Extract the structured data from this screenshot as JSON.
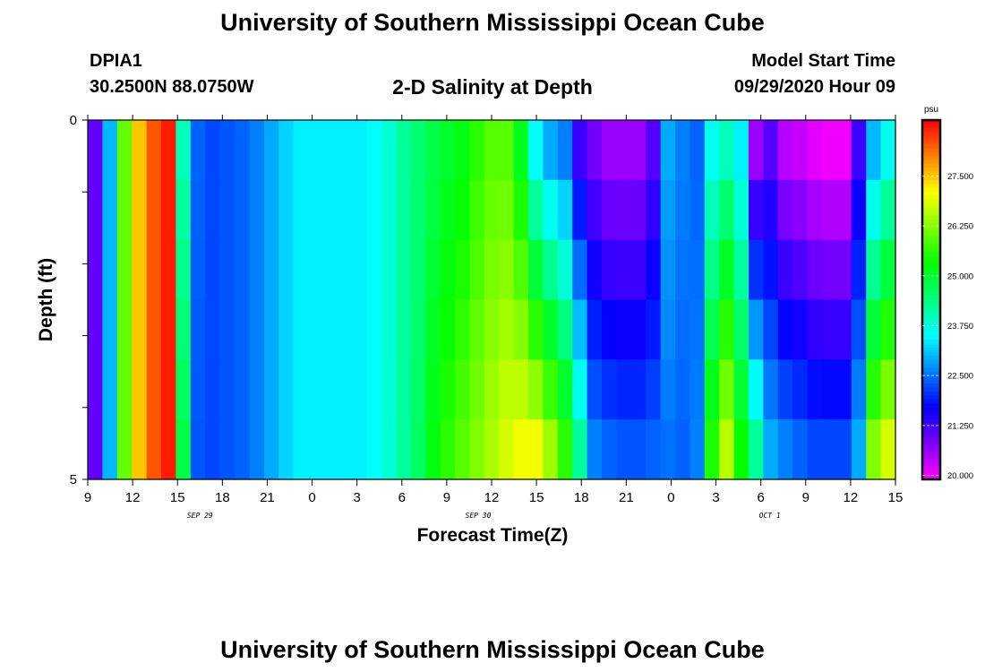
{
  "header": {
    "title": "University of Southern Mississippi Ocean Cube",
    "station_id": "DPIA1",
    "location": "30.2500N 88.0750W",
    "plot_title": "2-D Salinity at Depth",
    "model_start_label": "Model Start Time",
    "model_start_value": "09/29/2020 Hour 09"
  },
  "footer": {
    "title": "University of Southern Mississippi Ocean Cube"
  },
  "chart_data": {
    "type": "heatmap",
    "title": "2-D Salinity at Depth",
    "xlabel": "Forecast Time(Z)",
    "ylabel": "Depth (ft)",
    "x_hours": [
      9,
      10,
      11,
      12,
      13,
      14,
      15,
      16,
      17,
      18,
      19,
      20,
      21,
      22,
      23,
      0,
      1,
      2,
      3,
      4,
      5,
      6,
      7,
      8,
      9,
      10,
      11,
      12,
      13,
      14,
      15,
      16,
      17,
      18,
      19,
      20,
      21,
      22,
      23,
      0,
      1,
      2,
      3,
      4,
      5,
      6,
      7,
      8,
      9,
      10,
      11,
      12,
      13,
      14,
      15
    ],
    "x_ticks": [
      "9",
      "12",
      "15",
      "18",
      "21",
      "0",
      "3",
      "6",
      "9",
      "12",
      "15",
      "18",
      "21",
      "0",
      "3",
      "6",
      "9",
      "12",
      "15"
    ],
    "date_labels": [
      "SEP 29",
      "SEP 30",
      "OCT 1"
    ],
    "depth_layers": [
      0,
      1,
      2,
      3,
      4,
      5
    ],
    "y_tick_labels": [
      "0",
      "5"
    ],
    "ylim": [
      0,
      5
    ],
    "colorbar": {
      "unit": "psu",
      "range": [
        19.9,
        28.9
      ],
      "labels": [
        "27.500",
        "26.250",
        "25.000",
        "23.750",
        "22.500",
        "21.250",
        "20.000"
      ],
      "label_values": [
        27.5,
        26.25,
        25.0,
        23.75,
        22.5,
        21.25,
        20.0
      ]
    },
    "salinity_profiles": {
      "surface": [
        21.0,
        23.0,
        26.0,
        27.5,
        28.3,
        28.7,
        24.0,
        22.4,
        22.2,
        22.3,
        22.4,
        22.6,
        22.9,
        23.2,
        23.4,
        23.4,
        23.4,
        23.4,
        23.4,
        23.5,
        23.8,
        24.2,
        24.5,
        24.8,
        25.0,
        25.2,
        25.6,
        25.9,
        25.9,
        25.1,
        23.5,
        22.9,
        22.6,
        21.3,
        20.9,
        20.6,
        20.6,
        20.6,
        21.1,
        22.9,
        22.6,
        22.4,
        23.6,
        24.0,
        23.4,
        20.6,
        21.1,
        20.4,
        20.3,
        20.1,
        20.0,
        20.0,
        21.3,
        23.0,
        23.6
      ],
      "bottom": [
        21.0,
        23.0,
        26.0,
        27.5,
        28.3,
        28.7,
        24.8,
        22.3,
        22.2,
        22.3,
        22.4,
        22.6,
        22.9,
        23.2,
        23.4,
        23.4,
        23.4,
        23.4,
        23.4,
        23.5,
        23.8,
        24.2,
        24.6,
        25.2,
        25.6,
        25.9,
        26.2,
        26.5,
        26.8,
        27.0,
        27.0,
        26.4,
        25.6,
        24.2,
        22.6,
        22.4,
        22.3,
        22.3,
        22.4,
        22.5,
        22.4,
        22.6,
        25.5,
        26.6,
        25.3,
        24.2,
        22.9,
        22.6,
        22.4,
        22.2,
        22.2,
        22.2,
        22.9,
        26.2,
        26.8
      ]
    }
  }
}
